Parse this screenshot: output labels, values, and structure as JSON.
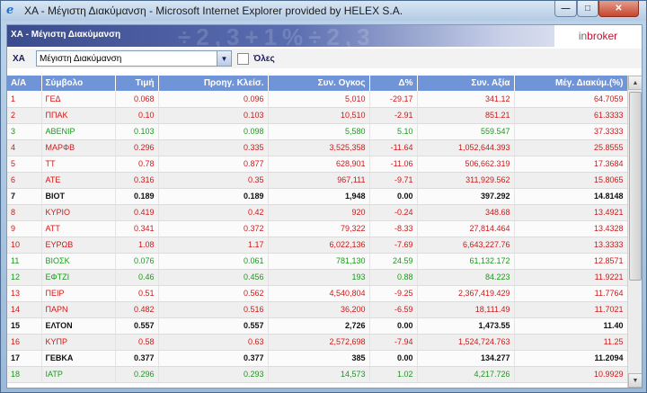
{
  "window": {
    "title": "ΧΑ - Μέγιστη Διακύμανση - Microsoft Internet Explorer provided by HELEX S.A.",
    "icon": "ie-icon",
    "icon_glyph": "e"
  },
  "banner": {
    "title": "ΧΑ - Μέγιστη Διακύμανση",
    "logo_in": "in",
    "logo_broker": "broker"
  },
  "filter": {
    "label": "ΧΑ",
    "selected": "Μέγιστη Διακύμανση",
    "checkbox_label": "Όλες"
  },
  "table": {
    "headers": [
      "Α/Α",
      "Σύμβολο",
      "Τιμή",
      "Προηγ. Κλείσ.",
      "Συν. Ογκος",
      "Δ%",
      "Συν. Αξία",
      "Μέγ. Διακύμ.(%)"
    ],
    "rows": [
      {
        "n": "1",
        "sym": "ΓΕΔ",
        "price": "0.068",
        "prev": "0.096",
        "vol": "5,010",
        "pct": "-29.17",
        "val": "341.12",
        "max": "64.7059",
        "trend": "neg"
      },
      {
        "n": "2",
        "sym": "ΠΠΑΚ",
        "price": "0.10",
        "prev": "0.103",
        "vol": "10,510",
        "pct": "-2.91",
        "val": "851.21",
        "max": "61.3333",
        "trend": "neg"
      },
      {
        "n": "3",
        "sym": "ΑΒΕΝΙΡ",
        "price": "0.103",
        "prev": "0.098",
        "vol": "5,580",
        "pct": "5.10",
        "val": "559.547",
        "max": "37.3333",
        "trend": "pos"
      },
      {
        "n": "4",
        "sym": "ΜΑΡΦΒ",
        "price": "0.296",
        "prev": "0.335",
        "vol": "3,525,358",
        "pct": "-11.64",
        "val": "1,052,644.393",
        "max": "25.8555",
        "trend": "neg"
      },
      {
        "n": "5",
        "sym": "ΤΤ",
        "price": "0.78",
        "prev": "0.877",
        "vol": "628,901",
        "pct": "-11.06",
        "val": "506,662.319",
        "max": "17.3684",
        "trend": "neg"
      },
      {
        "n": "6",
        "sym": "ΑΤΕ",
        "price": "0.316",
        "prev": "0.35",
        "vol": "967,111",
        "pct": "-9.71",
        "val": "311,929.562",
        "max": "15.8065",
        "trend": "neg"
      },
      {
        "n": "7",
        "sym": "ΒΙΟΤ",
        "price": "0.189",
        "prev": "0.189",
        "vol": "1,948",
        "pct": "0.00",
        "val": "397.292",
        "max": "14.8148",
        "trend": "zero"
      },
      {
        "n": "8",
        "sym": "ΚΥΡΙΟ",
        "price": "0.419",
        "prev": "0.42",
        "vol": "920",
        "pct": "-0.24",
        "val": "348.68",
        "max": "13.4921",
        "trend": "neg"
      },
      {
        "n": "9",
        "sym": "ΑΤΤ",
        "price": "0.341",
        "prev": "0.372",
        "vol": "79,322",
        "pct": "-8.33",
        "val": "27,814.464",
        "max": "13.4328",
        "trend": "neg"
      },
      {
        "n": "10",
        "sym": "ΕΥΡΩΒ",
        "price": "1.08",
        "prev": "1.17",
        "vol": "6,022,136",
        "pct": "-7.69",
        "val": "6,643,227.76",
        "max": "13.3333",
        "trend": "neg"
      },
      {
        "n": "11",
        "sym": "ΒΙΟΣΚ",
        "price": "0.076",
        "prev": "0.061",
        "vol": "781,130",
        "pct": "24.59",
        "val": "61,132.172",
        "max": "12.8571",
        "trend": "pos"
      },
      {
        "n": "12",
        "sym": "ΕΦΤΖΙ",
        "price": "0.46",
        "prev": "0.456",
        "vol": "193",
        "pct": "0.88",
        "val": "84.223",
        "max": "11.9221",
        "trend": "pos"
      },
      {
        "n": "13",
        "sym": "ΠΕΙΡ",
        "price": "0.51",
        "prev": "0.562",
        "vol": "4,540,804",
        "pct": "-9.25",
        "val": "2,367,419.429",
        "max": "11.7764",
        "trend": "neg"
      },
      {
        "n": "14",
        "sym": "ΠΑΡΝ",
        "price": "0.482",
        "prev": "0.516",
        "vol": "36,200",
        "pct": "-6.59",
        "val": "18,111.49",
        "max": "11.7021",
        "trend": "neg"
      },
      {
        "n": "15",
        "sym": "ΕΛΤΟΝ",
        "price": "0.557",
        "prev": "0.557",
        "vol": "2,726",
        "pct": "0.00",
        "val": "1,473.55",
        "max": "11.40",
        "trend": "zero"
      },
      {
        "n": "16",
        "sym": "ΚΥΠΡ",
        "price": "0.58",
        "prev": "0.63",
        "vol": "2,572,698",
        "pct": "-7.94",
        "val": "1,524,724.763",
        "max": "11.25",
        "trend": "neg"
      },
      {
        "n": "17",
        "sym": "ΓΕΒΚΑ",
        "price": "0.377",
        "prev": "0.377",
        "vol": "385",
        "pct": "0.00",
        "val": "134.277",
        "max": "11.2094",
        "trend": "zero"
      },
      {
        "n": "18",
        "sym": "ΙΑΤΡ",
        "price": "0.296",
        "prev": "0.293",
        "vol": "14,573",
        "pct": "1.02",
        "val": "4,217.726",
        "max": "10.9929",
        "trend": "pos"
      }
    ]
  },
  "colors": {
    "header_bg": "#6f94d8",
    "negative": "#d01818",
    "positive": "#1a9a1a",
    "unchanged": "#111111"
  }
}
